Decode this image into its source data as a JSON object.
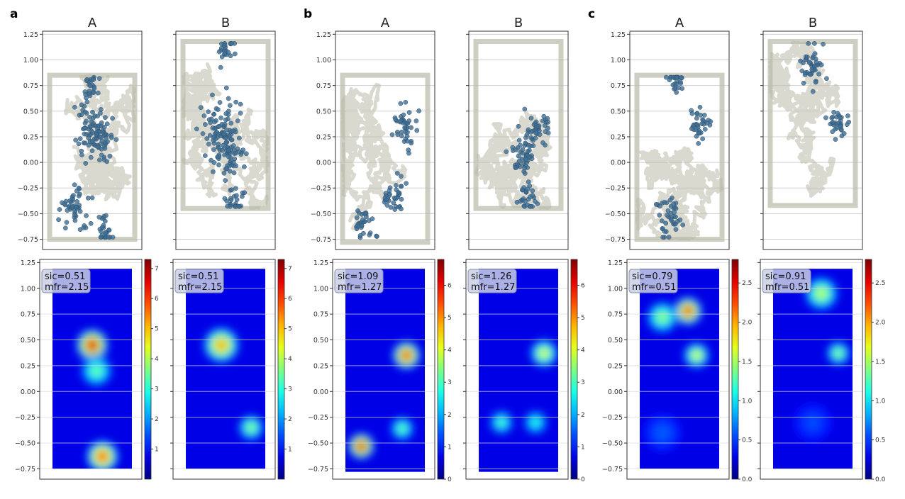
{
  "chart_data": {
    "type": "scatter",
    "description_note": "",
    "panels": [
      {
        "label": "a",
        "col_titles": [
          "A",
          "B"
        ],
        "yticks": [
          -0.75,
          -0.5,
          -0.25,
          0.0,
          0.25,
          0.5,
          0.75,
          1.0,
          1.25
        ],
        "ytick_labels": [
          "−0.75",
          "−0.50",
          "−0.25",
          "0.00",
          "0.25",
          "0.50",
          "0.75",
          "1.00",
          "1.25"
        ],
        "ylim": [
          -0.85,
          1.28
        ],
        "colorbar_ticks": [
          1,
          2,
          3,
          4,
          5,
          6,
          7
        ],
        "colorbar_max": 7.3,
        "env": [
          {
            "name": "A",
            "y_range": [
              -0.75,
              0.85
            ],
            "blobs": [
              [
                0.5,
                0.45,
                1.0,
                0.16
              ],
              [
                0.55,
                0.2,
                0.45,
                0.16
              ],
              [
                0.62,
                -0.63,
                0.9,
                0.16
              ]
            ],
            "sic": "sic=0.51",
            "mfr": "mfr=2.15",
            "spike_clusters": [
              [
                0.5,
                0.35,
                0.2
              ],
              [
                0.6,
                0.2,
                0.12
              ],
              [
                0.65,
                -0.68,
                0.06
              ],
              [
                0.3,
                -0.45,
                0.15
              ],
              [
                0.5,
                0.78,
                0.05
              ]
            ]
          },
          {
            "name": "B",
            "y_range": [
              -0.45,
              1.18
            ],
            "blobs": [
              [
                0.45,
                0.45,
                0.75,
                0.18
              ],
              [
                0.8,
                -0.35,
                0.5,
                0.13
              ]
            ],
            "sic": "sic=0.51",
            "mfr": "mfr=2.15",
            "spike_clusters": [
              [
                0.45,
                0.35,
                0.25
              ],
              [
                0.6,
                -0.38,
                0.06
              ],
              [
                0.5,
                0.1,
                0.2
              ],
              [
                0.5,
                1.1,
                0.05
              ]
            ]
          }
        ]
      },
      {
        "label": "b",
        "col_titles": [
          "A",
          "B"
        ],
        "yticks": [
          -0.75,
          -0.5,
          -0.25,
          0.0,
          0.25,
          0.5,
          0.75,
          1.0,
          1.25
        ],
        "ytick_labels": [
          "−0.75",
          "−0.50",
          "−0.25",
          "0.00",
          "0.25",
          "0.50",
          "0.75",
          "1.00",
          "1.25"
        ],
        "ylim": [
          -0.85,
          1.28
        ],
        "colorbar_ticks": [
          0,
          1,
          2,
          3,
          4,
          5,
          6
        ],
        "colorbar_max": 6.8,
        "env": [
          {
            "name": "A",
            "y_range": [
              -0.78,
              0.85
            ],
            "blobs": [
              [
                0.75,
                0.35,
                0.95,
                0.14
              ],
              [
                0.22,
                -0.53,
                1.0,
                0.13
              ],
              [
                0.7,
                -0.36,
                0.45,
                0.12
              ]
            ],
            "sic": "sic=1.09",
            "mfr": "mfr=1.27",
            "spike_clusters": [
              [
                0.72,
                0.35,
                0.12
              ],
              [
                0.25,
                -0.58,
                0.08
              ],
              [
                0.6,
                -0.3,
                0.1
              ]
            ]
          },
          {
            "name": "B",
            "y_range": [
              -0.45,
              1.18
            ],
            "blobs": [
              [
                0.8,
                0.37,
                0.6,
                0.14
              ],
              [
                0.3,
                -0.3,
                0.42,
                0.12
              ],
              [
                0.7,
                -0.3,
                0.38,
                0.12
              ]
            ],
            "sic": "sic=1.26",
            "mfr": "mfr=1.27",
            "spike_clusters": [
              [
                0.75,
                0.35,
                0.1
              ],
              [
                0.6,
                -0.35,
                0.07
              ],
              [
                0.55,
                0.1,
                0.15
              ]
            ]
          }
        ]
      },
      {
        "label": "c",
        "col_titles": [
          "A",
          "B"
        ],
        "yticks": [
          -0.75,
          -0.5,
          -0.25,
          0.0,
          0.25,
          0.5,
          0.75,
          1.0,
          1.25
        ],
        "ytick_labels": [
          "−0.75",
          "−0.50",
          "−0.25",
          "0.00",
          "0.25",
          "0.50",
          "0.75",
          "1.00",
          "1.25"
        ],
        "ylim": [
          -0.85,
          1.28
        ],
        "colorbar_ticks": [
          0.0,
          0.5,
          1.0,
          1.5,
          2.0,
          2.5
        ],
        "colorbar_tick_labels": [
          "0.0",
          "0.5",
          "1.0",
          "1.5",
          "2.0",
          "2.5"
        ],
        "colorbar_max": 2.8,
        "env": [
          {
            "name": "A",
            "y_range": [
              -0.75,
              0.85
            ],
            "blobs": [
              [
                0.6,
                0.78,
                0.95,
                0.14
              ],
              [
                0.3,
                0.72,
                0.5,
                0.16
              ],
              [
                0.7,
                0.35,
                0.6,
                0.13
              ],
              [
                0.3,
                -0.4,
                0.12,
                0.2
              ]
            ],
            "sic": "sic=0.79",
            "mfr": "mfr=0.51",
            "spike_clusters": [
              [
                0.45,
                0.8,
                0.06
              ],
              [
                0.75,
                0.4,
                0.1
              ],
              [
                0.4,
                -0.55,
                0.12
              ]
            ]
          },
          {
            "name": "B",
            "y_range": [
              -0.42,
              1.18
            ],
            "blobs": [
              [
                0.6,
                0.95,
                0.55,
                0.17
              ],
              [
                0.8,
                0.37,
                0.5,
                0.12
              ],
              [
                0.5,
                -0.3,
                0.1,
                0.2
              ]
            ],
            "sic": "sic=0.91",
            "mfr": "mfr=0.51",
            "spike_clusters": [
              [
                0.5,
                0.95,
                0.12
              ],
              [
                0.8,
                0.4,
                0.08
              ]
            ]
          }
        ]
      }
    ]
  },
  "colors": {
    "trajectory": "#b9b9aa",
    "spikes": "#3f6e92",
    "grid": "#cfcfcf",
    "frame": "#333333",
    "annotation_bg": "#c9cfe6"
  }
}
